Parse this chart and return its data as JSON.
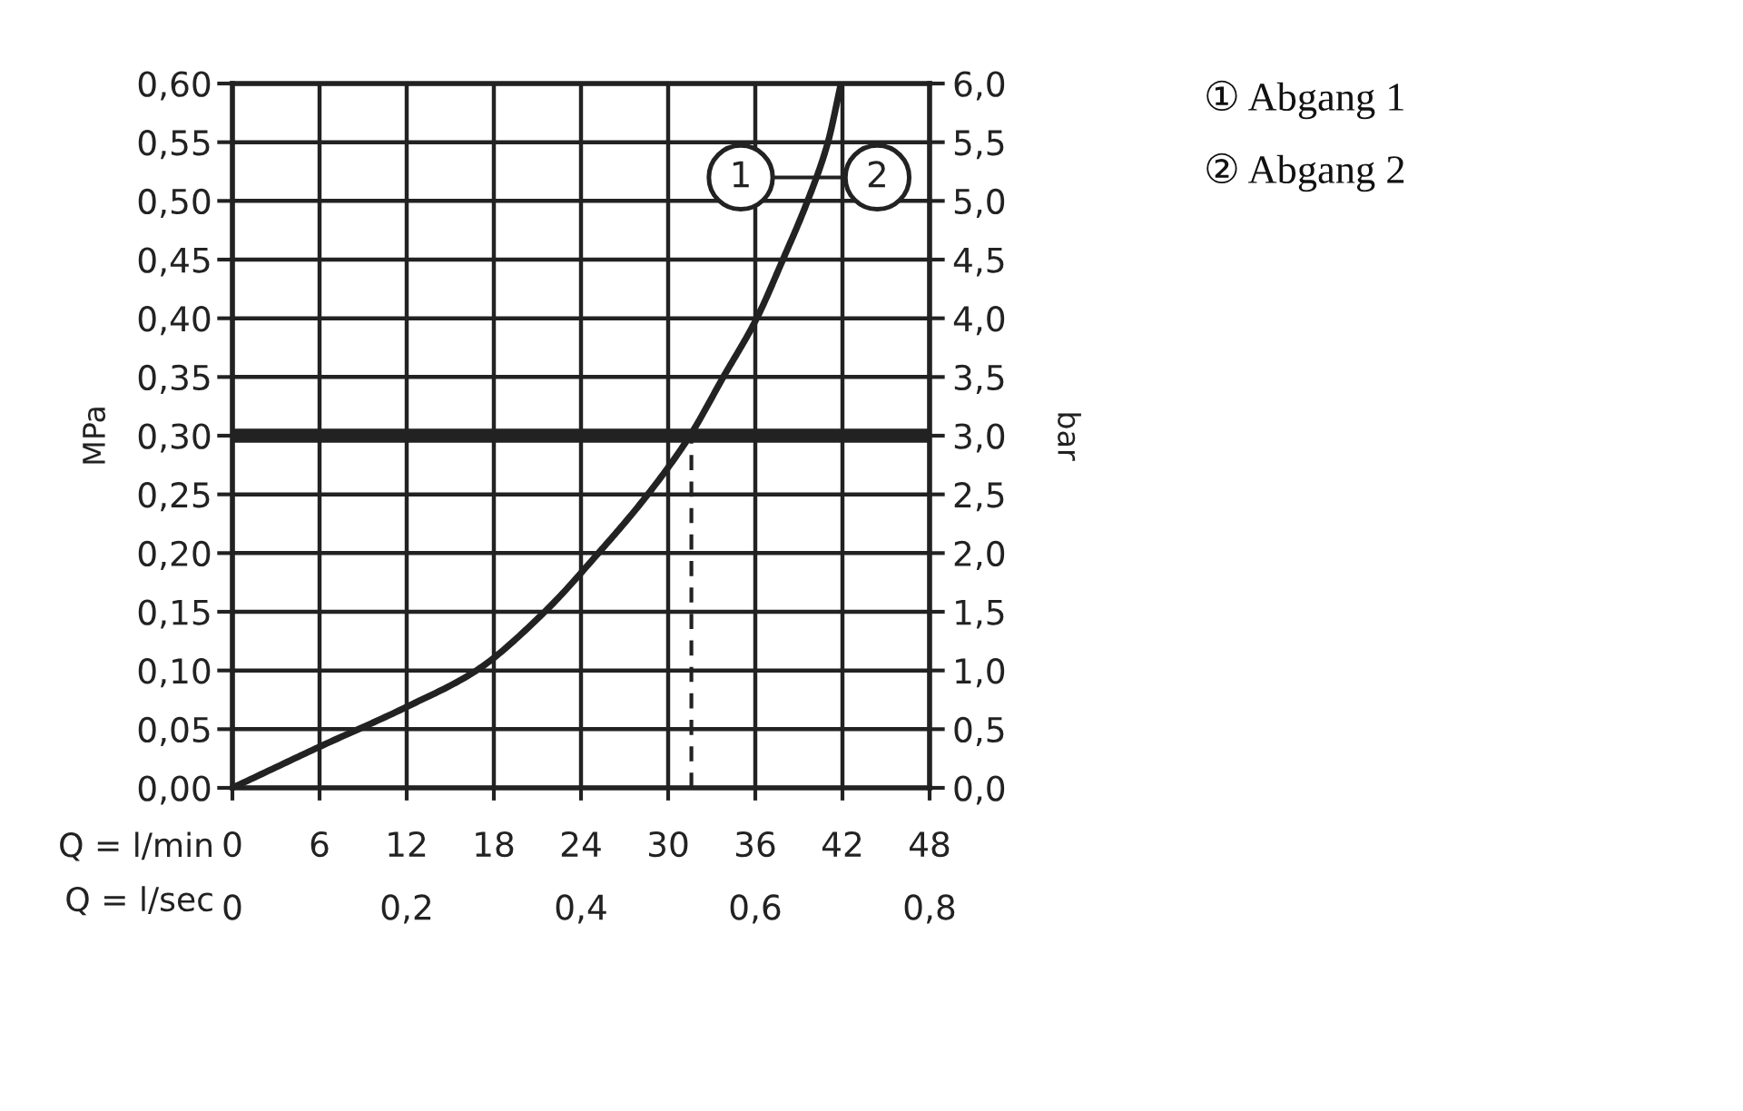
{
  "chart_data": {
    "type": "line",
    "xlabel": "Q = l/min",
    "x2label": "Q = l/sec",
    "ylabel": "MPa",
    "y2label": "bar",
    "x": [
      0,
      6,
      12,
      16.8,
      21.5,
      25.2,
      28.6,
      31.5,
      33.8,
      36.1,
      37.9,
      39.6,
      41,
      41.9
    ],
    "series": [
      {
        "color": "#222222",
        "values": [
          0,
          0.035,
          0.069,
          0.1,
          0.15,
          0.2,
          0.25,
          0.3,
          0.35,
          0.4,
          0.45,
          0.5,
          0.55,
          0.6
        ]
      },
      {
        "x": [
          31.6,
          31.6
        ],
        "values": [
          0,
          0.3
        ],
        "color": "#222222",
        "line_style": "dashed"
      }
    ],
    "xlim": [
      0,
      48
    ],
    "xticks": [
      0,
      6,
      12,
      18,
      24,
      30,
      36,
      42,
      48
    ],
    "x2lim": [
      0,
      0.8
    ],
    "x2ticks": [
      0,
      {
        "value": 0.2,
        "label": "0,2"
      },
      {
        "value": 0.4,
        "label": "0,4"
      },
      {
        "value": 0.6,
        "label": "0,6"
      },
      {
        "value": 0.8,
        "label": "0,8"
      }
    ],
    "ylim": [
      0,
      0.6
    ],
    "yticks": [
      {
        "value": 0,
        "label": "0,00"
      },
      {
        "value": 0.05,
        "label": "0,05"
      },
      {
        "value": 0.1,
        "label": "0,10"
      },
      {
        "value": 0.15,
        "label": "0,15"
      },
      {
        "value": 0.2,
        "label": "0,20"
      },
      {
        "value": 0.25,
        "label": "0,25"
      },
      {
        "value": 0.3,
        "label": "0,30"
      },
      {
        "value": 0.35,
        "label": "0,35"
      },
      {
        "value": 0.4,
        "label": "0,40"
      },
      {
        "value": 0.45,
        "label": "0,45"
      },
      {
        "value": 0.5,
        "label": "0,50"
      },
      {
        "value": 0.55,
        "label": "0,55"
      },
      {
        "value": 0.6,
        "label": "0,60"
      }
    ],
    "y2lim": [
      0,
      6
    ],
    "y2ticks": [
      {
        "value": 0,
        "label": "0,0"
      },
      {
        "value": 0.5,
        "label": "0,5"
      },
      {
        "value": 1,
        "label": "1,0"
      },
      {
        "value": 1.5,
        "label": "1,5"
      },
      {
        "value": 2,
        "label": "2,0"
      },
      {
        "value": 2.5,
        "label": "2,5"
      },
      {
        "value": 3,
        "label": "3,0"
      },
      {
        "value": 3.5,
        "label": "3,5"
      },
      {
        "value": 4,
        "label": "4,0"
      },
      {
        "value": 4.5,
        "label": "4,5"
      },
      {
        "value": 5,
        "label": "5,0"
      },
      {
        "value": 5.5,
        "label": "5,5"
      },
      {
        "value": 6,
        "label": "6,0"
      }
    ],
    "ref_lines": [
      {
        "axis": "y",
        "value": 0.3,
        "color": "#222222"
      }
    ],
    "annotations": [
      {
        "text": "1",
        "x": 35,
        "y": 0.52
      },
      {
        "text": "2",
        "x": 44.4,
        "y": 0.52
      },
      "① Abgang 1",
      "② Abgang 2"
    ],
    "grid": true,
    "legend": false,
    "marker": "none",
    "line_style": "solid"
  }
}
